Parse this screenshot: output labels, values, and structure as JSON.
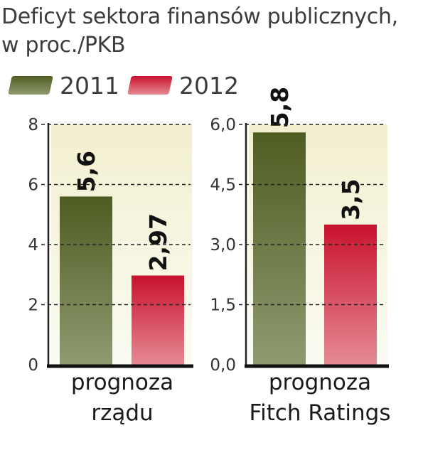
{
  "title": {
    "line1": "Deficyt sektora finansów publicznych,",
    "line2": "w proc./PKB"
  },
  "legend": [
    {
      "label": "2011",
      "color": "#5c6b2a"
    },
    {
      "label": "2012",
      "color": "#d0213a"
    }
  ],
  "colors": {
    "series_2011_top": "#4f5c22",
    "series_2011_bottom": "#8f9a70",
    "series_2012_top": "#c9122f",
    "series_2012_bottom": "#e58a92",
    "panel_top": "#f2efcf",
    "panel_bottom": "#fbfbf3"
  },
  "chart_data": [
    {
      "type": "bar",
      "title": "",
      "xlabel": "",
      "ylabel": "",
      "categories": [
        "prognoza rządu"
      ],
      "category_label_lines": [
        "prognoza",
        "rządu"
      ],
      "ylim": [
        0,
        8
      ],
      "yticks": [
        0,
        2,
        4,
        6,
        8
      ],
      "ytick_labels": [
        "0",
        "2",
        "4",
        "6",
        "8"
      ],
      "grid": true,
      "series": [
        {
          "name": "2011",
          "values": [
            5.6
          ],
          "value_labels": [
            "5,6"
          ]
        },
        {
          "name": "2012",
          "values": [
            2.97
          ],
          "value_labels": [
            "2,97"
          ]
        }
      ]
    },
    {
      "type": "bar",
      "title": "",
      "xlabel": "",
      "ylabel": "",
      "categories": [
        "prognoza Fitch Ratings"
      ],
      "category_label_lines": [
        "prognoza",
        "Fitch Ratings"
      ],
      "ylim": [
        0,
        6
      ],
      "yticks": [
        0,
        1.5,
        3,
        4.5,
        6
      ],
      "ytick_labels": [
        "0,0",
        "1,5",
        "3,0",
        "4,5",
        "6,0"
      ],
      "grid": true,
      "series": [
        {
          "name": "2011",
          "values": [
            5.8
          ],
          "value_labels": [
            "5,8"
          ]
        },
        {
          "name": "2012",
          "values": [
            3.5
          ],
          "value_labels": [
            "3,5"
          ]
        }
      ]
    }
  ]
}
